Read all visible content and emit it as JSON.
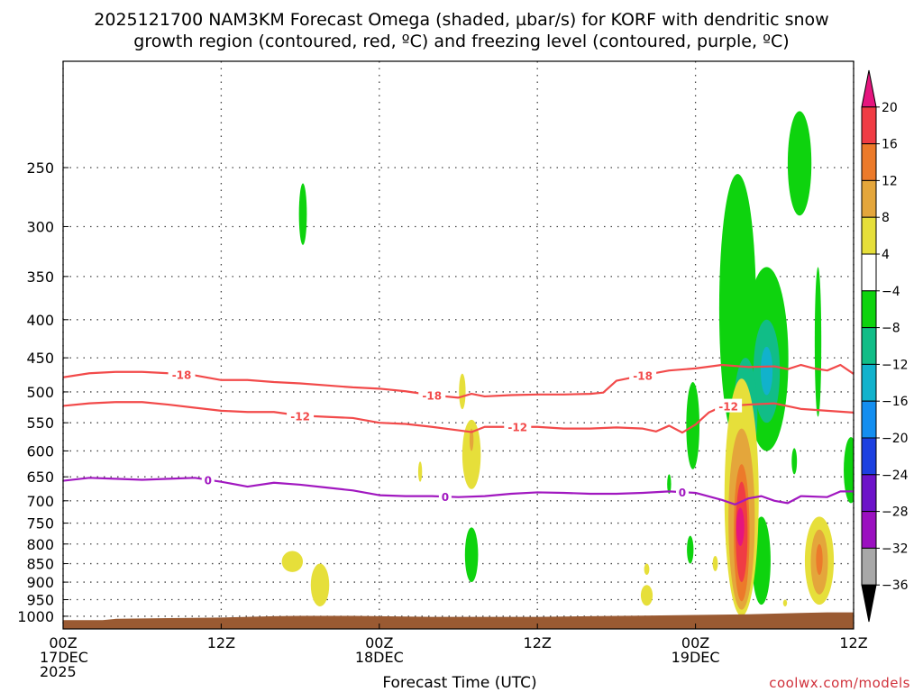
{
  "chart_data": {
    "type": "heatmap",
    "title_lines": [
      "2025121700 NAM3KM Forecast Omega (shaded, µbar/s) for KORF with dendritic snow",
      "growth region (contoured, red, ºC) and freezing level (contoured, purple, ºC)"
    ],
    "xlabel": "Forecast Time (UTC)",
    "credit": "coolwx.com/models",
    "x_range_hours": [
      0,
      60
    ],
    "y_axis": {
      "scale": "log",
      "range_mb": [
        1040,
        180
      ],
      "reversed": true
    },
    "x_ticks": [
      {
        "hour": 0,
        "lines": [
          "00Z",
          "17DEC",
          "2025"
        ]
      },
      {
        "hour": 12,
        "lines": [
          "12Z"
        ]
      },
      {
        "hour": 24,
        "lines": [
          "00Z",
          "18DEC"
        ]
      },
      {
        "hour": 36,
        "lines": [
          "12Z"
        ]
      },
      {
        "hour": 48,
        "lines": [
          "00Z",
          "19DEC"
        ]
      },
      {
        "hour": 60,
        "lines": [
          "12Z"
        ]
      }
    ],
    "y_ticks": [
      250,
      300,
      350,
      400,
      450,
      500,
      550,
      600,
      650,
      700,
      750,
      800,
      850,
      900,
      950,
      1000
    ],
    "colorbar": {
      "labels": [
        "20",
        "16",
        "12",
        "8",
        "4",
        "−4",
        "−8",
        "−12",
        "−16",
        "−20",
        "−24",
        "−28",
        "−32",
        "−36"
      ],
      "colors": [
        "#e5157e",
        "#f03c44",
        "#ec7a2a",
        "#e4a63b",
        "#e6df3a",
        "#ffffff",
        "#0ed30e",
        "#11bd87",
        "#11b2cc",
        "#138ef0",
        "#1c40e0",
        "#6d13c9",
        "#9b10c0",
        "#a8a8a8",
        "#000000"
      ]
    },
    "contours": [
      {
        "label": "-18",
        "color": "#f24a4a",
        "points": [
          [
            0,
            478
          ],
          [
            2,
            472
          ],
          [
            4,
            470
          ],
          [
            6,
            470
          ],
          [
            8,
            472
          ],
          [
            10,
            475
          ],
          [
            12,
            482
          ],
          [
            14,
            482
          ],
          [
            16,
            485
          ],
          [
            18,
            487
          ],
          [
            20,
            490
          ],
          [
            22,
            493
          ],
          [
            24,
            495
          ],
          [
            26,
            499
          ],
          [
            28,
            505
          ],
          [
            30,
            509
          ],
          [
            31,
            503
          ],
          [
            32,
            507
          ],
          [
            34,
            505
          ],
          [
            36,
            504
          ],
          [
            38,
            504
          ],
          [
            40,
            503
          ],
          [
            41,
            501
          ],
          [
            42,
            483
          ],
          [
            44,
            475
          ],
          [
            46,
            468
          ],
          [
            48,
            465
          ],
          [
            50,
            460
          ],
          [
            52,
            463
          ],
          [
            54,
            462
          ],
          [
            55,
            466
          ],
          [
            56,
            460
          ],
          [
            57,
            465
          ],
          [
            58,
            468
          ],
          [
            59,
            460
          ],
          [
            60,
            473
          ]
        ],
        "label_positions": [
          9,
          28,
          44
        ]
      },
      {
        "label": "-12",
        "color": "#f24a4a",
        "points": [
          [
            0,
            522
          ],
          [
            2,
            518
          ],
          [
            4,
            516
          ],
          [
            6,
            516
          ],
          [
            8,
            520
          ],
          [
            10,
            525
          ],
          [
            12,
            530
          ],
          [
            14,
            532
          ],
          [
            16,
            532
          ],
          [
            18,
            538
          ],
          [
            20,
            540
          ],
          [
            22,
            542
          ],
          [
            24,
            550
          ],
          [
            26,
            552
          ],
          [
            28,
            557
          ],
          [
            30,
            563
          ],
          [
            31,
            566
          ],
          [
            32,
            557
          ],
          [
            34,
            557
          ],
          [
            36,
            557
          ],
          [
            38,
            560
          ],
          [
            40,
            560
          ],
          [
            42,
            558
          ],
          [
            44,
            560
          ],
          [
            45,
            565
          ],
          [
            46,
            555
          ],
          [
            47,
            567
          ],
          [
            48,
            553
          ],
          [
            49,
            533
          ],
          [
            50,
            523
          ],
          [
            52,
            520
          ],
          [
            54,
            518
          ],
          [
            56,
            527
          ],
          [
            58,
            530
          ],
          [
            60,
            533
          ]
        ],
        "label_positions": [
          18,
          34.5,
          50.5
        ]
      },
      {
        "label": "0",
        "color": "#a118c0",
        "points": [
          [
            0,
            658
          ],
          [
            2,
            652
          ],
          [
            4,
            654
          ],
          [
            6,
            656
          ],
          [
            8,
            654
          ],
          [
            10,
            652
          ],
          [
            12,
            660
          ],
          [
            14,
            670
          ],
          [
            16,
            662
          ],
          [
            18,
            666
          ],
          [
            20,
            672
          ],
          [
            22,
            678
          ],
          [
            24,
            688
          ],
          [
            26,
            690
          ],
          [
            28,
            690
          ],
          [
            30,
            692
          ],
          [
            32,
            690
          ],
          [
            34,
            685
          ],
          [
            36,
            682
          ],
          [
            38,
            683
          ],
          [
            40,
            685
          ],
          [
            42,
            685
          ],
          [
            44,
            683
          ],
          [
            46,
            680
          ],
          [
            48,
            683
          ],
          [
            50,
            698
          ],
          [
            51,
            708
          ],
          [
            52,
            695
          ],
          [
            53,
            690
          ],
          [
            54,
            700
          ],
          [
            55,
            705
          ],
          [
            56,
            690
          ],
          [
            58,
            692
          ],
          [
            59,
            680
          ],
          [
            60,
            680
          ]
        ],
        "label_positions": [
          11,
          29,
          47
        ]
      }
    ],
    "omega_regions": [
      {
        "sign": "up",
        "level": 1,
        "center": [
          55.9,
          250
        ],
        "size": [
          1.8,
          80
        ]
      },
      {
        "sign": "up",
        "level": 1,
        "center": [
          18.2,
          290
        ],
        "size": [
          0.6,
          55
        ]
      },
      {
        "sign": "up",
        "level": 1,
        "center": [
          51.2,
          420
        ],
        "size": [
          2.8,
          330
        ]
      },
      {
        "sign": "up",
        "level": 1,
        "center": [
          53.4,
          470
        ],
        "size": [
          3.3,
          260
        ]
      },
      {
        "sign": "up",
        "level": 2,
        "center": [
          53.4,
          475
        ],
        "size": [
          2.0,
          150
        ]
      },
      {
        "sign": "up",
        "level": 3,
        "center": [
          53.4,
          470
        ],
        "size": [
          0.9,
          70
        ]
      },
      {
        "sign": "up",
        "level": 2,
        "center": [
          51.8,
          540
        ],
        "size": [
          1.8,
          180
        ]
      },
      {
        "sign": "up",
        "level": 3,
        "center": [
          51.8,
          575
        ],
        "size": [
          0.7,
          90
        ]
      },
      {
        "sign": "up",
        "level": 1,
        "center": [
          47.8,
          560
        ],
        "size": [
          1.0,
          150
        ]
      },
      {
        "sign": "up",
        "level": 1,
        "center": [
          57.3,
          440
        ],
        "size": [
          0.5,
          200
        ]
      },
      {
        "sign": "up",
        "level": 1,
        "center": [
          59.8,
          640
        ],
        "size": [
          1.1,
          130
        ]
      },
      {
        "sign": "up",
        "level": 1,
        "center": [
          55.5,
          620
        ],
        "size": [
          0.4,
          50
        ]
      },
      {
        "sign": "up",
        "level": 1,
        "center": [
          31.0,
          830
        ],
        "size": [
          1.0,
          140
        ]
      },
      {
        "sign": "up",
        "level": 1,
        "center": [
          46.0,
          665
        ],
        "size": [
          0.3,
          40
        ]
      },
      {
        "sign": "up",
        "level": 1,
        "center": [
          47.6,
          815
        ],
        "size": [
          0.5,
          70
        ]
      },
      {
        "sign": "up",
        "level": 1,
        "center": [
          53.0,
          850
        ],
        "size": [
          1.4,
          230
        ]
      },
      {
        "sign": "down",
        "level": 1,
        "center": [
          30.3,
          500
        ],
        "size": [
          0.5,
          55
        ]
      },
      {
        "sign": "down",
        "level": 1,
        "center": [
          31.0,
          610
        ],
        "size": [
          1.4,
          130
        ]
      },
      {
        "sign": "down",
        "level": 2,
        "center": [
          31.0,
          580
        ],
        "size": [
          0.3,
          40
        ]
      },
      {
        "sign": "down",
        "level": 1,
        "center": [
          27.1,
          640
        ],
        "size": [
          0.3,
          40
        ]
      },
      {
        "sign": "down",
        "level": 1,
        "center": [
          17.4,
          845
        ],
        "size": [
          1.6,
          55
        ]
      },
      {
        "sign": "down",
        "level": 1,
        "center": [
          19.5,
          910
        ],
        "size": [
          1.4,
          120
        ]
      },
      {
        "sign": "down",
        "level": 1,
        "center": [
          44.3,
          938
        ],
        "size": [
          0.9,
          60
        ]
      },
      {
        "sign": "down",
        "level": 1,
        "center": [
          44.3,
          865
        ],
        "size": [
          0.4,
          30
        ]
      },
      {
        "sign": "down",
        "level": 1,
        "center": [
          49.5,
          850
        ],
        "size": [
          0.4,
          40
        ]
      },
      {
        "sign": "down",
        "level": 1,
        "center": [
          51.5,
          740
        ],
        "size": [
          2.6,
          520
        ]
      },
      {
        "sign": "down",
        "level": 2,
        "center": [
          51.5,
          770
        ],
        "size": [
          2.0,
          420
        ]
      },
      {
        "sign": "down",
        "level": 3,
        "center": [
          51.5,
          790
        ],
        "size": [
          1.2,
          330
        ]
      },
      {
        "sign": "down",
        "level": 4,
        "center": [
          51.5,
          780
        ],
        "size": [
          0.9,
          240
        ]
      },
      {
        "sign": "down",
        "level": 5,
        "center": [
          51.4,
          760
        ],
        "size": [
          0.6,
          90
        ]
      },
      {
        "sign": "down",
        "level": 1,
        "center": [
          57.4,
          850
        ],
        "size": [
          2.2,
          230
        ]
      },
      {
        "sign": "down",
        "level": 2,
        "center": [
          57.4,
          850
        ],
        "size": [
          1.3,
          170
        ]
      },
      {
        "sign": "down",
        "level": 3,
        "center": [
          57.4,
          840
        ],
        "size": [
          0.5,
          80
        ]
      },
      {
        "sign": "down",
        "level": 1,
        "center": [
          54.8,
          960
        ],
        "size": [
          0.3,
          20
        ]
      }
    ],
    "terrain": {
      "color": "#9a5a32",
      "points": [
        [
          0,
          1012
        ],
        [
          3,
          1012
        ],
        [
          4,
          1008
        ],
        [
          8,
          1006
        ],
        [
          12,
          1004
        ],
        [
          16,
          1000
        ],
        [
          18,
          999
        ],
        [
          22,
          999
        ],
        [
          24,
          1000
        ],
        [
          28,
          1002
        ],
        [
          32,
          1002
        ],
        [
          36,
          1002
        ],
        [
          40,
          1000
        ],
        [
          44,
          998
        ],
        [
          48,
          996
        ],
        [
          52,
          994
        ],
        [
          56,
          990
        ],
        [
          58,
          988
        ],
        [
          60,
          988
        ]
      ]
    }
  }
}
